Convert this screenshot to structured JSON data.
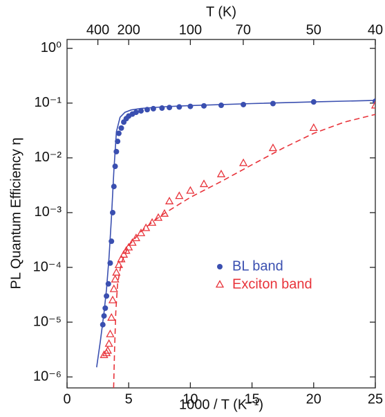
{
  "chart_data": {
    "type": "scatter",
    "xlabel": "1000 / T (K⁻¹)",
    "ylabel": "PL Quantum Efficiency η",
    "x2label": "T (K)",
    "xlim": [
      0,
      25
    ],
    "xticks": [
      0,
      5,
      10,
      15,
      20,
      25
    ],
    "x2ticks": [
      {
        "value": 2.5,
        "label": "400"
      },
      {
        "value": 5,
        "label": "200"
      },
      {
        "value": 10,
        "label": "100"
      },
      {
        "value": 14.29,
        "label": "70"
      },
      {
        "value": 20,
        "label": "50"
      },
      {
        "value": 25,
        "label": "40"
      }
    ],
    "ylim": [
      6.3e-07,
      1.45
    ],
    "log_y": true,
    "yticks": [
      {
        "value": 1,
        "label": "10⁰"
      },
      {
        "value": 0.1,
        "label": "10⁻¹"
      },
      {
        "value": 0.01,
        "label": "10⁻²"
      },
      {
        "value": 0.001,
        "label": "10⁻³"
      },
      {
        "value": 0.0001,
        "label": "10⁻⁴"
      },
      {
        "value": 1e-05,
        "label": "10⁻⁵"
      },
      {
        "value": 1e-06,
        "label": "10⁻⁶"
      }
    ],
    "legend": "center-right",
    "series": [
      {
        "name": "BL band",
        "color": "#3a4fb0",
        "marker": "circle",
        "x": [
          2.9,
          3.0,
          3.1,
          3.2,
          3.35,
          3.5,
          3.6,
          3.7,
          3.8,
          3.9,
          4.0,
          4.1,
          4.2,
          4.4,
          4.6,
          4.8,
          5.0,
          5.3,
          5.6,
          6.0,
          6.5,
          7.0,
          7.7,
          8.3,
          9.1,
          10,
          11.1,
          12.5,
          14.3,
          16.7,
          20,
          25
        ],
        "values": [
          9e-06,
          1.3e-05,
          1.8e-05,
          3e-05,
          5e-05,
          0.00012,
          0.0003,
          0.001,
          0.003,
          0.007,
          0.013,
          0.02,
          0.028,
          0.035,
          0.045,
          0.052,
          0.058,
          0.063,
          0.068,
          0.072,
          0.076,
          0.079,
          0.081,
          0.083,
          0.085,
          0.087,
          0.089,
          0.091,
          0.094,
          0.098,
          0.105,
          0.108
        ]
      },
      {
        "name": "Exciton band",
        "color": "#e8333a",
        "marker": "triangle",
        "x": [
          3.0,
          3.2,
          3.3,
          3.4,
          3.5,
          3.6,
          3.7,
          3.8,
          3.9,
          4.0,
          4.2,
          4.4,
          4.6,
          4.8,
          5.0,
          5.3,
          5.6,
          6.0,
          6.4,
          6.9,
          7.4,
          7.9,
          8.3,
          9.1,
          10,
          11.1,
          12.5,
          14.3,
          16.7,
          20,
          25
        ],
        "values": [
          2.5e-06,
          2.7e-06,
          3e-06,
          4e-06,
          6e-06,
          1.2e-05,
          2.5e-05,
          4e-05,
          6e-05,
          8e-05,
          0.00011,
          0.00014,
          0.00017,
          0.0002,
          0.00023,
          0.00028,
          0.00034,
          0.00042,
          0.00052,
          0.00065,
          0.0008,
          0.00095,
          0.0016,
          0.002,
          0.0025,
          0.0033,
          0.005,
          0.008,
          0.015,
          0.035,
          0.09
        ]
      }
    ],
    "fits": [
      {
        "color": "#3a4fb0",
        "dash": false,
        "x": [
          2.4,
          2.7,
          3.0,
          3.2,
          3.4,
          3.6,
          3.8,
          4.0,
          4.3,
          4.7,
          5.2,
          6,
          8,
          10,
          15,
          20,
          25
        ],
        "values": [
          1.5e-06,
          4.5e-06,
          1.5e-05,
          4e-05,
          0.00015,
          0.0008,
          0.006,
          0.03,
          0.055,
          0.068,
          0.075,
          0.08,
          0.086,
          0.09,
          0.098,
          0.105,
          0.112
        ]
      },
      {
        "color": "#e8333a",
        "dash": true,
        "x": [
          3.78,
          3.85,
          3.95,
          4.1,
          4.4,
          5,
          6,
          7,
          8,
          10,
          12.5,
          15,
          17.5,
          20,
          22.5,
          25
        ],
        "values": [
          6.3e-07,
          3e-06,
          1.5e-05,
          5e-05,
          0.00012,
          0.00025,
          0.00045,
          0.0007,
          0.001,
          0.0019,
          0.0037,
          0.0075,
          0.015,
          0.028,
          0.045,
          0.062
        ]
      }
    ]
  }
}
